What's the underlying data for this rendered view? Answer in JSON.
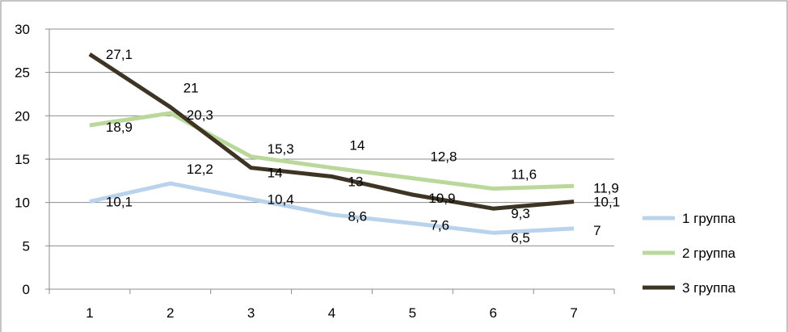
{
  "chart_data": {
    "type": "line",
    "title": "",
    "xlabel": "",
    "ylabel": "",
    "x": [
      1,
      2,
      3,
      4,
      5,
      6,
      7
    ],
    "ylim": [
      0,
      30
    ],
    "yticks": [
      0,
      5,
      10,
      15,
      20,
      25,
      30
    ],
    "grid": "horizontal",
    "legend": "right",
    "series": [
      {
        "name": "1 группа",
        "color": "#b9d3ec",
        "values": [
          10.1,
          12.2,
          10.4,
          8.6,
          7.6,
          6.5,
          7
        ],
        "labels": [
          "10,1",
          "12,2",
          "10,4",
          "8,6",
          "7,6",
          "6,5",
          "7"
        ]
      },
      {
        "name": "2 группа",
        "color": "#b9d89a",
        "values": [
          18.9,
          20.3,
          15.3,
          14,
          12.8,
          11.6,
          11.9
        ],
        "labels": [
          "18,9",
          "20,3",
          "15,3",
          "14",
          "12,8",
          "11,6",
          "11,9"
        ]
      },
      {
        "name": "3 группа",
        "color": "#3d3424",
        "values": [
          27.1,
          21,
          14,
          13,
          10.9,
          9.3,
          10.1
        ],
        "labels": [
          "27,1",
          "21",
          "14",
          "13",
          "10,9",
          "9,3",
          "10,1"
        ]
      }
    ]
  }
}
